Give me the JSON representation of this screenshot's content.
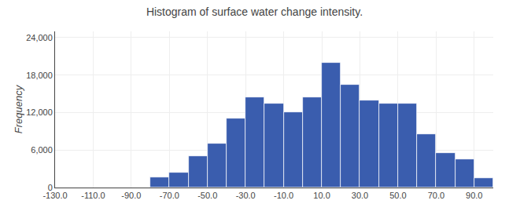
{
  "chart_data": {
    "type": "histogram",
    "title": "Histogram of surface water change intensity.",
    "ylabel": "Frequency",
    "bins": [
      -80,
      -70,
      -60,
      -50,
      -40,
      -30,
      -20,
      -10,
      0,
      10,
      20,
      30,
      40,
      50,
      60,
      70,
      80,
      90,
      100
    ],
    "values": [
      1600,
      2400,
      5000,
      7000,
      11000,
      14500,
      13500,
      12000,
      14500,
      20000,
      16500,
      14000,
      13500,
      13500,
      8500,
      5500,
      4500,
      1500
    ],
    "color": "#3a5dae",
    "xlim": [
      -130,
      100
    ],
    "ylim": [
      0,
      25000
    ],
    "xticks": [
      {
        "value": -130,
        "label": "-130.0"
      },
      {
        "value": -110,
        "label": "-110.0"
      },
      {
        "value": -90,
        "label": "-90.0"
      },
      {
        "value": -70,
        "label": "-70.0"
      },
      {
        "value": -50,
        "label": "-50.0"
      },
      {
        "value": -30,
        "label": "-30.0"
      },
      {
        "value": -10,
        "label": "-10.0"
      },
      {
        "value": 10,
        "label": "10.0"
      },
      {
        "value": 30,
        "label": "30.0"
      },
      {
        "value": 50,
        "label": "50.0"
      },
      {
        "value": 70,
        "label": "70.0"
      },
      {
        "value": 90,
        "label": "90.0"
      }
    ],
    "yticks": [
      0,
      {
        "value": 6000,
        "label": "6,000"
      },
      {
        "value": 12000,
        "label": "12,000"
      },
      {
        "value": 18000,
        "label": "18,000"
      },
      {
        "value": 24000,
        "label": "24,000"
      }
    ],
    "grid": true
  }
}
